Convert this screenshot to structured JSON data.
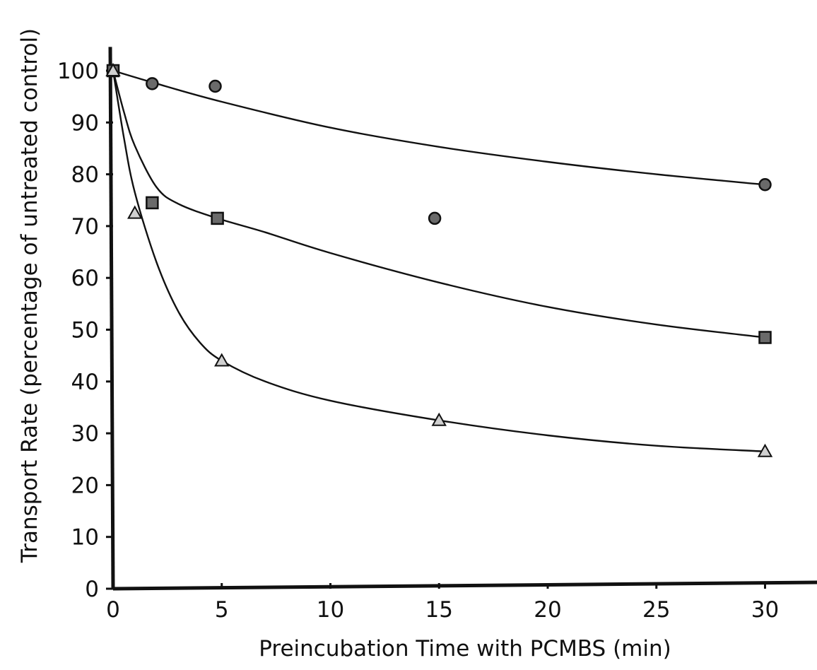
{
  "chart_data": {
    "type": "scatter",
    "title": "",
    "xlabel": "Preincubation Time with PCMBS (min)",
    "ylabel": "Transport Rate (percentage of untreated control)",
    "xlim": [
      0,
      32.5
    ],
    "ylim": [
      0,
      105
    ],
    "xticks": [
      0,
      5,
      10,
      15,
      20,
      25,
      30
    ],
    "yticks": [
      0,
      10,
      20,
      30,
      40,
      50,
      60,
      70,
      80,
      90,
      100
    ],
    "grid": false,
    "legend": "none",
    "series": [
      {
        "marker": "circle",
        "points": [
          [
            0,
            100
          ],
          [
            1.8,
            97.5
          ],
          [
            4.7,
            97
          ],
          [
            14.8,
            71.5
          ],
          [
            30,
            78
          ]
        ],
        "fit_curve": [
          [
            0,
            100
          ],
          [
            2,
            97.5
          ],
          [
            5,
            94
          ],
          [
            10,
            89
          ],
          [
            15,
            85.3
          ],
          [
            20,
            82.4
          ],
          [
            25,
            80
          ],
          [
            30,
            78
          ]
        ]
      },
      {
        "marker": "square",
        "points": [
          [
            0,
            100
          ],
          [
            1.8,
            74.5
          ],
          [
            4.8,
            71.5
          ],
          [
            30,
            48.5
          ]
        ],
        "fit_curve": [
          [
            0,
            100
          ],
          [
            0.5,
            92
          ],
          [
            1,
            85.5
          ],
          [
            2,
            77.5
          ],
          [
            3,
            74.3
          ],
          [
            4.8,
            71.5
          ],
          [
            7,
            68.8
          ],
          [
            10,
            64.8
          ],
          [
            15,
            59.1
          ],
          [
            20,
            54.4
          ],
          [
            25,
            51
          ],
          [
            30,
            48.5
          ]
        ]
      },
      {
        "marker": "triangle",
        "points": [
          [
            0,
            100
          ],
          [
            1,
            72.5
          ],
          [
            5,
            44
          ],
          [
            15,
            32.5
          ],
          [
            30,
            26.5
          ]
        ],
        "fit_curve": [
          [
            0,
            100
          ],
          [
            0.5,
            87
          ],
          [
            1,
            76.5
          ],
          [
            2,
            63
          ],
          [
            3,
            53.5
          ],
          [
            4,
            47.5
          ],
          [
            5,
            44
          ],
          [
            7,
            40
          ],
          [
            10,
            36.3
          ],
          [
            15,
            32.5
          ],
          [
            20,
            29.6
          ],
          [
            25,
            27.6
          ],
          [
            30,
            26.5
          ]
        ]
      }
    ]
  }
}
